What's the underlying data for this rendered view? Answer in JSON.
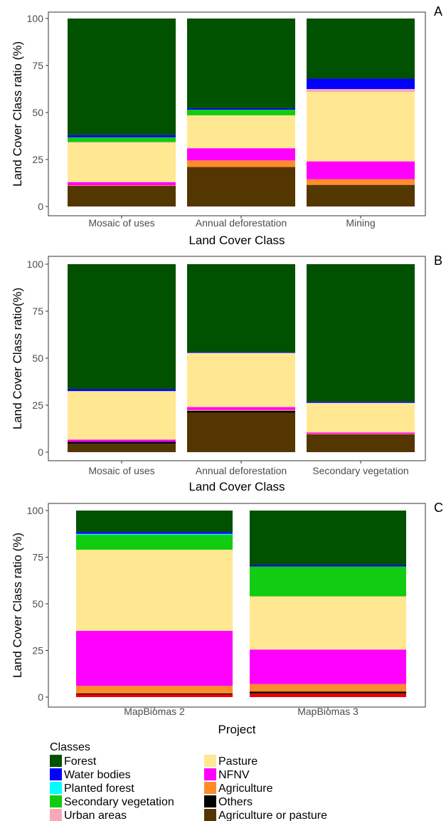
{
  "classes": {
    "forest": {
      "label": "Forest",
      "color": "#005100"
    },
    "water": {
      "label": "Water bodies",
      "color": "#0000ff"
    },
    "planted": {
      "label": "Planted forest",
      "color": "#00ffff"
    },
    "secondary": {
      "label": "Secondary vegetation",
      "color": "#11cc11"
    },
    "urban": {
      "label": "Urban areas",
      "color": "#f8a8b8"
    },
    "pasture": {
      "label": "Pasture",
      "color": "#ffe891"
    },
    "nfnv": {
      "label": "NFNV",
      "color": "#ff00ff"
    },
    "agriculture": {
      "label": "Agriculture",
      "color": "#ff8c2a"
    },
    "others": {
      "label": "Others",
      "color": "#000000"
    },
    "agripasture": {
      "label": "Agriculture or pasture",
      "color": "#543600"
    },
    "red_unlabeled": {
      "label": "",
      "color": "#ee0000"
    }
  },
  "legend": {
    "title": "Classes",
    "column1": [
      "forest",
      "water",
      "planted",
      "secondary",
      "urban"
    ],
    "column2": [
      "pasture",
      "nfnv",
      "agriculture",
      "others",
      "agripasture"
    ]
  },
  "chart_data": [
    {
      "panel": "A",
      "type": "bar",
      "stacked": true,
      "xlabel": "Land Cover Class",
      "ylabel": "Land Cover Class ratio (%)",
      "ylim": [
        0,
        100
      ],
      "yticks": [
        "0",
        "25",
        "50",
        "75",
        "100"
      ],
      "categories": [
        "Mosaic of uses",
        "Annual deforestation",
        "Mining"
      ],
      "stack_order_bottom_to_top": [
        "agripasture",
        "others",
        "agriculture",
        "nfnv",
        "pasture",
        "urban",
        "secondary",
        "planted",
        "water",
        "forest"
      ],
      "series": [
        {
          "class": "agripasture",
          "values": [
            11,
            21,
            11.5
          ]
        },
        {
          "class": "others",
          "values": [
            0,
            0,
            0
          ]
        },
        {
          "class": "agriculture",
          "values": [
            0.3,
            3.5,
            3
          ]
        },
        {
          "class": "nfnv",
          "values": [
            1.7,
            6.5,
            9.5
          ]
        },
        {
          "class": "pasture",
          "values": [
            21,
            17.5,
            37
          ]
        },
        {
          "class": "urban",
          "values": [
            0.3,
            0,
            1.5
          ]
        },
        {
          "class": "secondary",
          "values": [
            2.5,
            3,
            0
          ]
        },
        {
          "class": "planted",
          "values": [
            0,
            0,
            0
          ]
        },
        {
          "class": "water",
          "values": [
            1.2,
            0.8,
            5.5
          ]
        },
        {
          "class": "forest",
          "values": [
            62,
            47.7,
            32
          ]
        }
      ]
    },
    {
      "panel": "B",
      "type": "bar",
      "stacked": true,
      "xlabel": "Land Cover Class",
      "ylabel": "Land Cover Class ratio(%)",
      "ylim": [
        0,
        100
      ],
      "yticks": [
        "0",
        "25",
        "50",
        "75",
        "100"
      ],
      "categories": [
        "Mosaic of uses",
        "Annual deforestation",
        "Secondary vegetation"
      ],
      "stack_order_bottom_to_top": [
        "agripasture",
        "others",
        "agriculture",
        "nfnv",
        "pasture",
        "urban",
        "secondary",
        "planted",
        "water",
        "forest"
      ],
      "series": [
        {
          "class": "agripasture",
          "values": [
            4.5,
            21,
            9.5
          ]
        },
        {
          "class": "others",
          "values": [
            1,
            1,
            0
          ]
        },
        {
          "class": "agriculture",
          "values": [
            0,
            0.5,
            0.3
          ]
        },
        {
          "class": "nfnv",
          "values": [
            1.2,
            1.5,
            0.7
          ]
        },
        {
          "class": "pasture",
          "values": [
            25.8,
            28.8,
            15.7
          ]
        },
        {
          "class": "urban",
          "values": [
            0,
            0,
            0
          ]
        },
        {
          "class": "secondary",
          "values": [
            0,
            0,
            0
          ]
        },
        {
          "class": "planted",
          "values": [
            0,
            0,
            0
          ]
        },
        {
          "class": "water",
          "values": [
            1,
            0.4,
            0.6
          ]
        },
        {
          "class": "forest",
          "values": [
            66.5,
            46.8,
            73.2
          ]
        }
      ]
    },
    {
      "panel": "C",
      "type": "bar",
      "stacked": true,
      "xlabel": "Project",
      "ylabel": "Land Cover Class ratio (%)",
      "ylim": [
        0,
        100
      ],
      "yticks": [
        "0",
        "25",
        "50",
        "75",
        "100"
      ],
      "categories": [
        "MapBiomas 2",
        "MapBiomas 3"
      ],
      "stack_order_bottom_to_top": [
        "red_unlabeled",
        "agripasture",
        "others",
        "agriculture",
        "nfnv",
        "pasture",
        "urban",
        "secondary",
        "planted",
        "water",
        "forest"
      ],
      "series": [
        {
          "class": "red_unlabeled",
          "values": [
            1.5,
            2
          ]
        },
        {
          "class": "agripasture",
          "values": [
            0,
            0
          ]
        },
        {
          "class": "others",
          "values": [
            0.5,
            1
          ]
        },
        {
          "class": "agriculture",
          "values": [
            4,
            4
          ]
        },
        {
          "class": "nfnv",
          "values": [
            29.5,
            18.5
          ]
        },
        {
          "class": "pasture",
          "values": [
            43.5,
            28.5
          ]
        },
        {
          "class": "urban",
          "values": [
            0,
            0
          ]
        },
        {
          "class": "secondary",
          "values": [
            8,
            16
          ]
        },
        {
          "class": "planted",
          "values": [
            0.5,
            0
          ]
        },
        {
          "class": "water",
          "values": [
            1,
            0.8
          ]
        },
        {
          "class": "forest",
          "values": [
            11.5,
            29.2
          ]
        }
      ]
    }
  ]
}
